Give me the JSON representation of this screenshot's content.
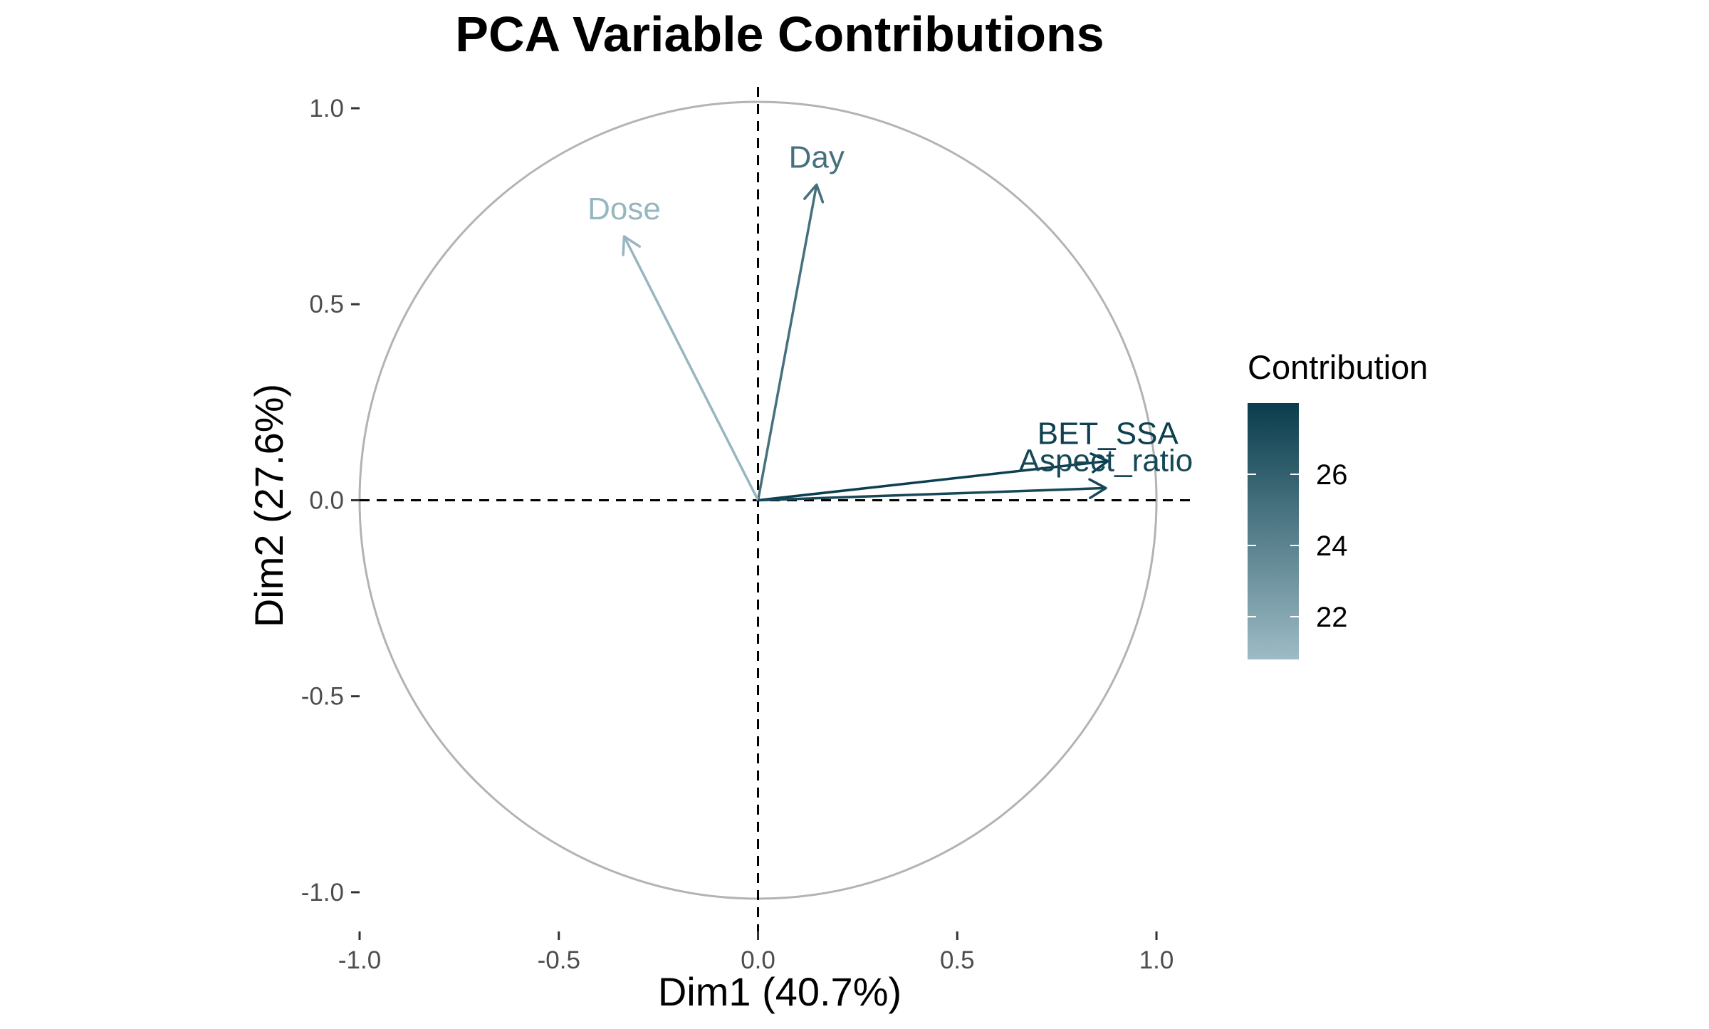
{
  "chart_data": {
    "type": "scatter",
    "subtype": "pca-correlation-circle",
    "title": "PCA Variable Contributions",
    "xlabel": "Dim1 (40.7%)",
    "ylabel": "Dim2 (27.6%)",
    "xlim": [
      -1.0,
      1.1
    ],
    "ylim": [
      -1.1,
      1.0
    ],
    "xticks": [
      -1.0,
      -0.5,
      0.0,
      0.5,
      1.0
    ],
    "xtick_labels": [
      "-1.0",
      "-0.5",
      "0.0",
      "0.5",
      "1.0"
    ],
    "yticks": [
      -1.0,
      -0.5,
      0.0,
      0.5,
      1.0
    ],
    "ytick_labels": [
      "-1.0",
      "-0.5",
      "0.0",
      "0.5",
      "1.0"
    ],
    "grid": false,
    "reference_lines": {
      "x": 0,
      "y": 0,
      "style": "dashed"
    },
    "unit_circle": {
      "radius": 1,
      "color": "#b3b3b3"
    },
    "variables": [
      {
        "name": "Day",
        "label": "Day",
        "x": 0.147,
        "y": 0.805,
        "contrib": 25.1
      },
      {
        "name": "Dose",
        "label": "Dose",
        "x": -0.336,
        "y": 0.673,
        "contrib": 21.1
      },
      {
        "name": "BET_SSA",
        "label": "BET_SSA",
        "x": 0.878,
        "y": 0.1,
        "contrib": 27.9
      },
      {
        "name": "Aspect_ratio",
        "label": "Aspect_ratio",
        "x": 0.873,
        "y": 0.031,
        "contrib": 27.4
      }
    ],
    "legend": {
      "title": "Contribution",
      "position": "right",
      "min": 20.8,
      "max": 28.0,
      "ticks": [
        22,
        24,
        26
      ],
      "tick_labels": [
        "22",
        "24",
        "26"
      ],
      "color_low": "#9dbbc5",
      "color_high": "#0a3d4d"
    },
    "colors": {
      "axis": "#333333",
      "tick_text": "#4d4d4d",
      "circle": "#b3b3b3"
    }
  }
}
